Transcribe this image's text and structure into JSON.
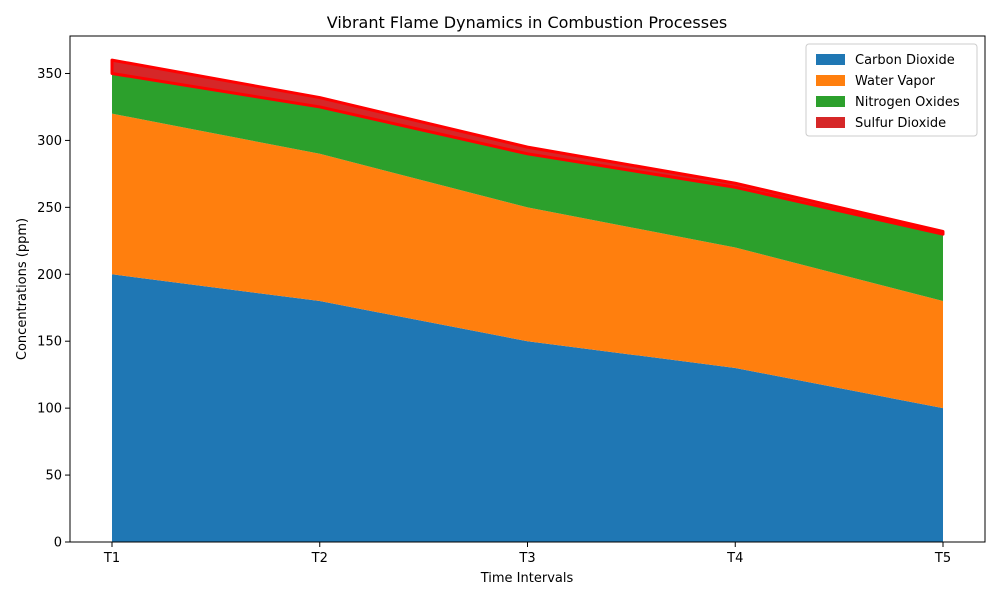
{
  "chart_data": {
    "type": "area",
    "stacked": true,
    "title": "Vibrant Flame Dynamics in Combustion Processes",
    "xlabel": "Time Intervals",
    "ylabel": "Concentrations (ppm)",
    "categories": [
      "T1",
      "T2",
      "T3",
      "T4",
      "T5"
    ],
    "ylim": [
      0,
      378
    ],
    "yticks": [
      0,
      50,
      100,
      150,
      200,
      250,
      300,
      350
    ],
    "grid": false,
    "legend_position": "top-right",
    "series": [
      {
        "name": "Carbon Dioxide",
        "color": "#1f77b4",
        "values": [
          200,
          180,
          150,
          130,
          100
        ]
      },
      {
        "name": "Water Vapor",
        "color": "#ff7f0e",
        "values": [
          120,
          110,
          100,
          90,
          80
        ]
      },
      {
        "name": "Nitrogen Oxides",
        "color": "#2ca02c",
        "values": [
          30,
          35,
          40,
          45,
          50
        ]
      },
      {
        "name": "Sulfur Dioxide",
        "color": "#d62728",
        "edge_color": "#ff0000",
        "values": [
          10,
          7,
          5,
          3,
          2
        ]
      }
    ]
  }
}
